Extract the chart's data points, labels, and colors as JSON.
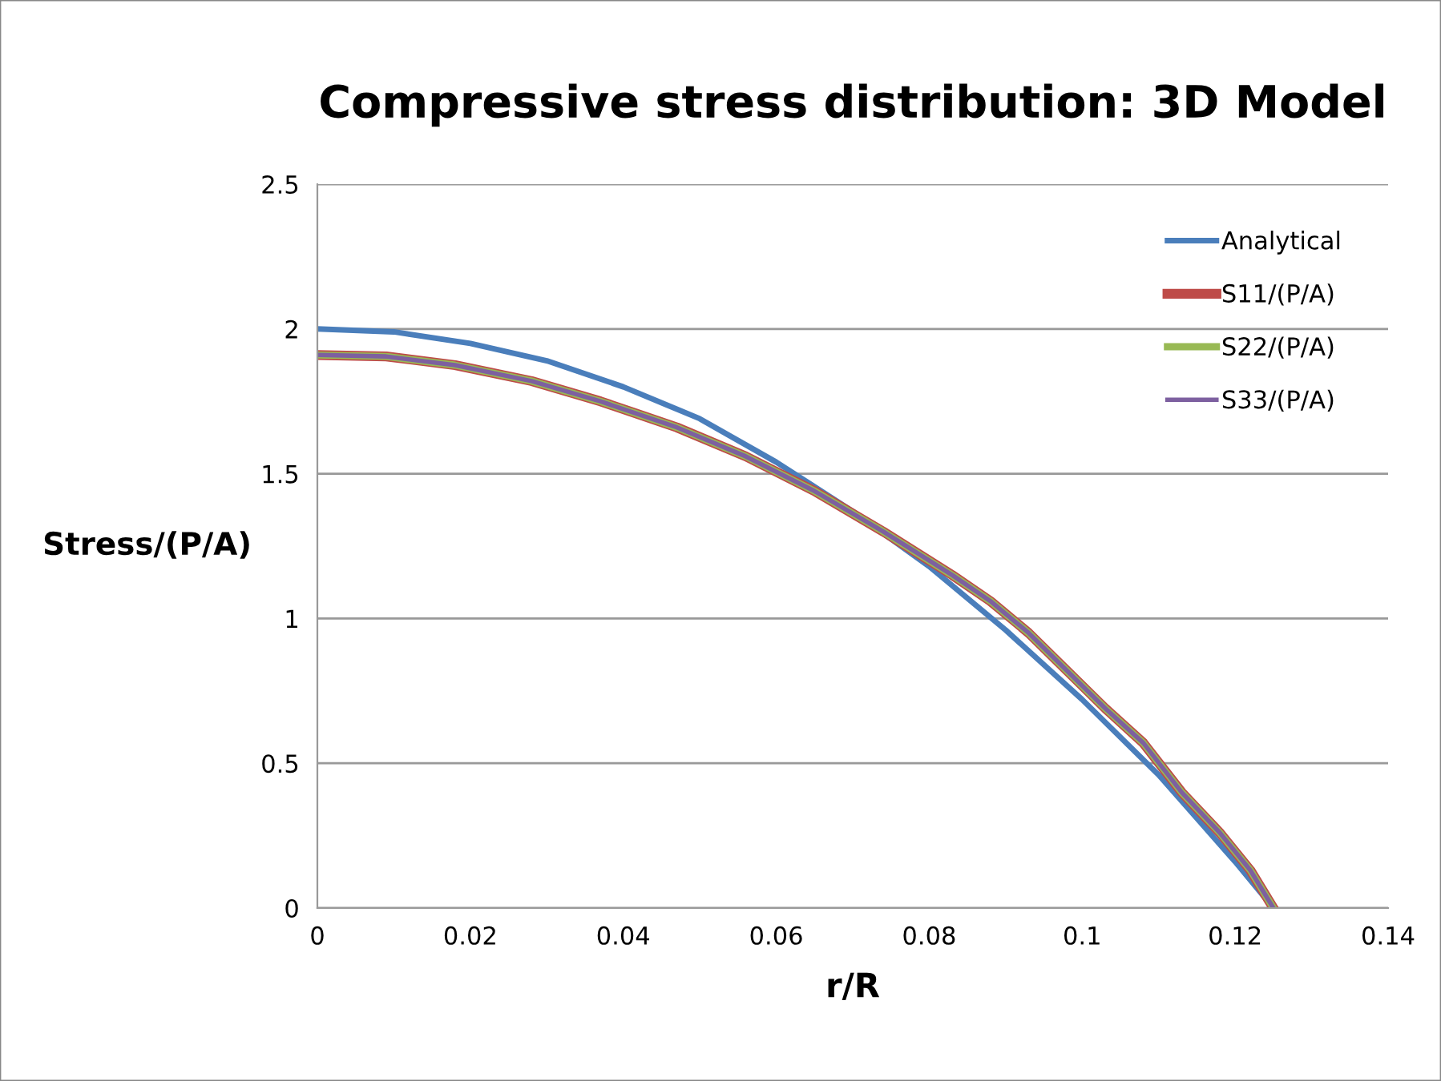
{
  "chart_data": {
    "type": "line",
    "title": "Compressive stress distribution: 3D Model",
    "xlabel": "r/R",
    "ylabel": "Stress/(P/A)",
    "xlim": [
      0,
      0.14
    ],
    "xticks": [
      0,
      0.02,
      0.04,
      0.06,
      0.08,
      0.1,
      0.12,
      0.14
    ],
    "ylim": [
      0,
      2.5
    ],
    "yticks": [
      0,
      0.5,
      1,
      1.5,
      2,
      2.5
    ],
    "grid": "y",
    "legend": "top right",
    "marker": "none",
    "line_style": "solid",
    "series": [
      {
        "name": "Analytical",
        "color": "#4a7ebb",
        "x": [
          0,
          0.01,
          0.02,
          0.03,
          0.04,
          0.05,
          0.06,
          0.07,
          0.08,
          0.09,
          0.1,
          0.11,
          0.12,
          0.125
        ],
        "values": [
          2.0,
          1.99,
          1.95,
          1.89,
          1.8,
          1.69,
          1.54,
          1.37,
          1.18,
          0.96,
          0.72,
          0.46,
          0.16,
          0.0
        ]
      },
      {
        "name": "S11/(P/A)",
        "color": "#be4b48",
        "x": [
          0,
          0.009,
          0.018,
          0.028,
          0.037,
          0.047,
          0.056,
          0.065,
          0.074,
          0.083,
          0.088,
          0.093,
          0.098,
          0.103,
          0.108,
          0.113,
          0.118,
          0.122,
          0.125
        ],
        "values": [
          1.91,
          1.905,
          1.875,
          1.82,
          1.75,
          1.66,
          1.56,
          1.44,
          1.3,
          1.15,
          1.06,
          0.95,
          0.82,
          0.69,
          0.57,
          0.4,
          0.26,
          0.13,
          0.0
        ]
      },
      {
        "name": "S22/(P/A)",
        "color": "#98b954",
        "x": [
          0,
          0.009,
          0.018,
          0.028,
          0.037,
          0.047,
          0.056,
          0.065,
          0.074,
          0.083,
          0.088,
          0.093,
          0.098,
          0.103,
          0.108,
          0.113,
          0.118,
          0.122,
          0.125
        ],
        "values": [
          1.91,
          1.905,
          1.875,
          1.82,
          1.75,
          1.66,
          1.56,
          1.44,
          1.3,
          1.15,
          1.06,
          0.95,
          0.82,
          0.69,
          0.57,
          0.4,
          0.26,
          0.13,
          0.0
        ]
      },
      {
        "name": "S33/(P/A)",
        "color": "#7d60a0",
        "x": [
          0,
          0.009,
          0.018,
          0.028,
          0.037,
          0.047,
          0.056,
          0.065,
          0.074,
          0.083,
          0.088,
          0.093,
          0.098,
          0.103,
          0.108,
          0.113,
          0.118,
          0.122,
          0.125
        ],
        "values": [
          1.91,
          1.905,
          1.875,
          1.82,
          1.75,
          1.66,
          1.56,
          1.44,
          1.3,
          1.15,
          1.06,
          0.95,
          0.82,
          0.69,
          0.57,
          0.4,
          0.26,
          0.13,
          0.0
        ]
      }
    ]
  }
}
